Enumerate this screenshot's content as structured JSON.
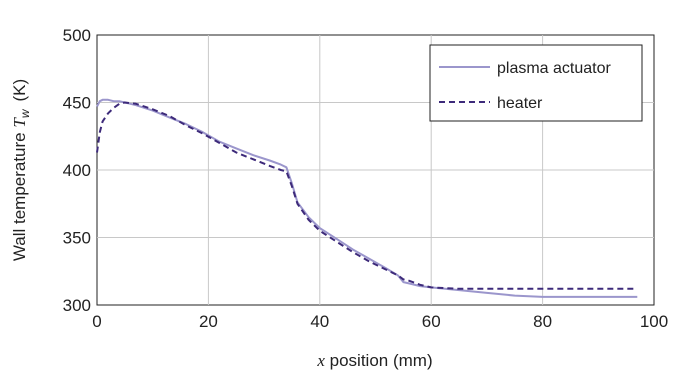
{
  "chart_data": {
    "type": "line",
    "xlabel": {
      "var": "x",
      "rest": " position (mm)"
    },
    "ylabel": {
      "main": "Wall temperature ",
      "var": "T",
      "sub": "w",
      "unit": "(K)"
    },
    "xlim": [
      0,
      100
    ],
    "ylim": [
      300,
      500
    ],
    "xticks": [
      "0",
      "20",
      "40",
      "60",
      "80",
      "100"
    ],
    "yticks": [
      "300",
      "350",
      "400",
      "450",
      "500"
    ],
    "grid": true,
    "legend_position": "top-right",
    "series": [
      {
        "name": "plasma actuator",
        "color": "#9b96cc",
        "style": "solid",
        "points": [
          [
            0,
            447
          ],
          [
            0.5,
            451
          ],
          [
            1,
            452
          ],
          [
            2,
            452
          ],
          [
            3,
            451
          ],
          [
            4,
            451
          ],
          [
            5,
            450
          ],
          [
            7,
            448
          ],
          [
            10,
            444
          ],
          [
            13,
            439
          ],
          [
            16,
            434
          ],
          [
            19,
            428
          ],
          [
            22,
            421
          ],
          [
            25,
            416
          ],
          [
            28,
            411
          ],
          [
            31,
            407
          ],
          [
            33,
            404
          ],
          [
            34,
            402
          ],
          [
            35,
            390
          ],
          [
            36,
            376
          ],
          [
            38,
            365
          ],
          [
            40,
            357
          ],
          [
            43,
            349
          ],
          [
            46,
            341
          ],
          [
            49,
            334
          ],
          [
            52,
            327
          ],
          [
            54,
            322
          ],
          [
            55,
            317
          ],
          [
            56,
            316
          ],
          [
            58,
            314
          ],
          [
            60,
            313
          ],
          [
            65,
            311
          ],
          [
            70,
            309
          ],
          [
            75,
            307
          ],
          [
            80,
            306
          ],
          [
            85,
            306
          ],
          [
            90,
            306
          ],
          [
            97,
            306
          ]
        ]
      },
      {
        "name": "heater",
        "color": "#3d2a7a",
        "style": "dashed",
        "points": [
          [
            0,
            413
          ],
          [
            0.5,
            428
          ],
          [
            1,
            436
          ],
          [
            2,
            442
          ],
          [
            3,
            446
          ],
          [
            4,
            449
          ],
          [
            5,
            450
          ],
          [
            7,
            449
          ],
          [
            10,
            445
          ],
          [
            13,
            440
          ],
          [
            16,
            433
          ],
          [
            19,
            427
          ],
          [
            22,
            420
          ],
          [
            25,
            413
          ],
          [
            28,
            408
          ],
          [
            31,
            403
          ],
          [
            33,
            400
          ],
          [
            34,
            399
          ],
          [
            35,
            388
          ],
          [
            36,
            375
          ],
          [
            38,
            363
          ],
          [
            40,
            355
          ],
          [
            43,
            347
          ],
          [
            46,
            339
          ],
          [
            49,
            332
          ],
          [
            52,
            326
          ],
          [
            54,
            322
          ],
          [
            55,
            319
          ],
          [
            56,
            318
          ],
          [
            58,
            315
          ],
          [
            60,
            313
          ],
          [
            65,
            312
          ],
          [
            70,
            312
          ],
          [
            75,
            312
          ],
          [
            80,
            312
          ],
          [
            90,
            312
          ],
          [
            97,
            312
          ]
        ]
      }
    ]
  }
}
